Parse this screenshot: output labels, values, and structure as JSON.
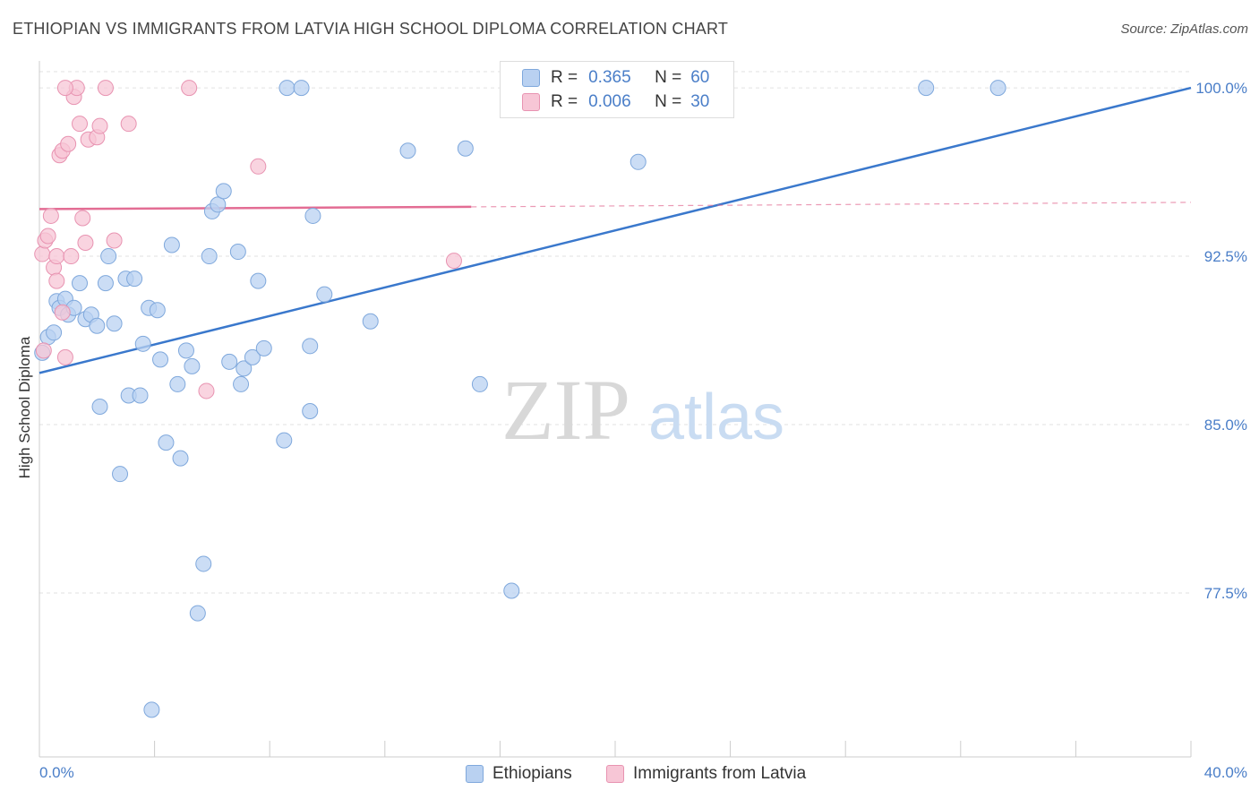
{
  "title": "ETHIOPIAN VS IMMIGRANTS FROM LATVIA HIGH SCHOOL DIPLOMA CORRELATION CHART",
  "source": "Source: ZipAtlas.com",
  "watermark": {
    "zip": "ZIP",
    "atlas": "atlas"
  },
  "legend": {
    "r_label": "R =",
    "n_label": "N =",
    "blue": {
      "r": "0.365",
      "n": "60"
    },
    "pink": {
      "r": "0.006",
      "n": "30"
    }
  },
  "colors": {
    "blue_fill": "#b9d1f1",
    "blue_stroke": "#7fa8dc",
    "blue_line": "#3a78cc",
    "pink_fill": "#f7c6d6",
    "pink_stroke": "#e893b1",
    "pink_line": "#e36d94",
    "axis_text": "#4a7ec8"
  },
  "chart_data": {
    "type": "scatter",
    "title": "ETHIOPIAN VS IMMIGRANTS FROM LATVIA HIGH SCHOOL DIPLOMA CORRELATION CHART",
    "xlabel": "",
    "ylabel": "High School Diploma",
    "xlim": [
      0,
      40
    ],
    "ylim": [
      70.2,
      101.2
    ],
    "x_tick_labels": [
      "0.0%",
      "40.0%"
    ],
    "y_ticks": [
      77.5,
      85.0,
      92.5,
      100.0
    ],
    "y_tick_labels": [
      "77.5%",
      "85.0%",
      "92.5%",
      "100.0%"
    ],
    "grid": true,
    "legend_position": "top-center",
    "series": [
      {
        "name": "Ethiopians",
        "color": "#b9d1f1",
        "trend": {
          "x": [
            0,
            40
          ],
          "y": [
            87.3,
            100.0
          ],
          "style": "solid"
        },
        "points": [
          [
            0.1,
            88.2
          ],
          [
            0.3,
            88.9
          ],
          [
            0.5,
            89.1
          ],
          [
            0.6,
            90.5
          ],
          [
            0.7,
            90.2
          ],
          [
            0.9,
            90.6
          ],
          [
            1.0,
            89.9
          ],
          [
            1.2,
            90.2
          ],
          [
            1.4,
            91.3
          ],
          [
            1.6,
            89.7
          ],
          [
            1.8,
            89.9
          ],
          [
            2.0,
            89.4
          ],
          [
            2.1,
            85.8
          ],
          [
            2.3,
            91.3
          ],
          [
            2.4,
            92.5
          ],
          [
            2.6,
            89.5
          ],
          [
            2.8,
            82.8
          ],
          [
            3.0,
            91.5
          ],
          [
            3.1,
            86.3
          ],
          [
            3.3,
            91.5
          ],
          [
            3.5,
            86.3
          ],
          [
            3.6,
            88.6
          ],
          [
            3.8,
            90.2
          ],
          [
            3.9,
            72.3
          ],
          [
            4.1,
            90.1
          ],
          [
            4.2,
            87.9
          ],
          [
            4.4,
            84.2
          ],
          [
            4.6,
            93.0
          ],
          [
            4.8,
            86.8
          ],
          [
            4.9,
            83.5
          ],
          [
            5.1,
            88.3
          ],
          [
            5.3,
            87.6
          ],
          [
            5.5,
            76.6
          ],
          [
            5.7,
            78.8
          ],
          [
            5.9,
            92.5
          ],
          [
            6.0,
            94.5
          ],
          [
            6.2,
            94.8
          ],
          [
            6.4,
            95.4
          ],
          [
            6.6,
            87.8
          ],
          [
            6.9,
            92.7
          ],
          [
            7.0,
            86.8
          ],
          [
            7.1,
            87.5
          ],
          [
            7.4,
            88.0
          ],
          [
            7.6,
            91.4
          ],
          [
            7.8,
            88.4
          ],
          [
            8.5,
            84.3
          ],
          [
            8.6,
            100.0
          ],
          [
            9.1,
            100.0
          ],
          [
            9.4,
            88.5
          ],
          [
            9.4,
            85.6
          ],
          [
            9.5,
            94.3
          ],
          [
            9.9,
            90.8
          ],
          [
            11.5,
            89.6
          ],
          [
            12.8,
            97.2
          ],
          [
            14.8,
            97.3
          ],
          [
            15.3,
            86.8
          ],
          [
            16.4,
            77.6
          ],
          [
            20.8,
            96.7
          ],
          [
            30.8,
            100.0
          ],
          [
            33.3,
            100.0
          ]
        ]
      },
      {
        "name": "Immigrants from Latvia",
        "color": "#f7c6d6",
        "trend": {
          "x": [
            0,
            15
          ],
          "y": [
            94.6,
            94.7
          ],
          "style": "solid",
          "dashed_to": [
            40,
            94.9
          ]
        },
        "points": [
          [
            0.1,
            92.6
          ],
          [
            0.2,
            93.2
          ],
          [
            0.3,
            93.4
          ],
          [
            0.4,
            94.3
          ],
          [
            0.5,
            92.0
          ],
          [
            0.6,
            92.5
          ],
          [
            0.6,
            91.4
          ],
          [
            0.7,
            97.0
          ],
          [
            0.8,
            97.2
          ],
          [
            0.8,
            90.0
          ],
          [
            0.9,
            88.0
          ],
          [
            1.0,
            97.5
          ],
          [
            1.1,
            92.5
          ],
          [
            1.2,
            99.6
          ],
          [
            1.3,
            100.0
          ],
          [
            1.4,
            98.4
          ],
          [
            1.5,
            94.2
          ],
          [
            1.6,
            93.1
          ],
          [
            1.7,
            97.7
          ],
          [
            2.0,
            97.8
          ],
          [
            2.1,
            98.3
          ],
          [
            2.3,
            100.0
          ],
          [
            2.6,
            93.2
          ],
          [
            3.1,
            98.4
          ],
          [
            5.2,
            100.0
          ],
          [
            5.8,
            86.5
          ],
          [
            7.6,
            96.5
          ],
          [
            14.4,
            92.3
          ],
          [
            0.15,
            88.3
          ],
          [
            0.9,
            100.0
          ]
        ]
      }
    ]
  },
  "bottom_legend": {
    "blue_label": "Ethiopians",
    "pink_label": "Immigrants from Latvia"
  }
}
